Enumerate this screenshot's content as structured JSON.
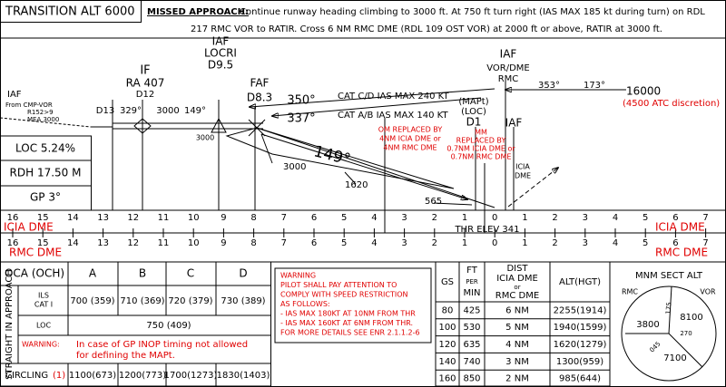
{
  "header": {
    "transition_alt": "TRANSITION ALT 6000",
    "missed_approach_label": "MISSED APPROACH:",
    "missed_approach_lines": [
      "Continue runway heading climbing to 3000 ft. At 750 ft turn right (IAS MAX 185 kt during turn) on RDL",
      "217 RMC VOR to RATIR. Cross 6 NM RMC DME (RDL 109 OST VOR) at 2000 ft or above, RATIR at 3000 ft."
    ]
  },
  "profile": {
    "left_iaf": "IAF",
    "from_cmp": "From CMP-VOR",
    "radial": "R152>9",
    "mea": "MEA 3000",
    "if": "IF",
    "if_name": "RA 407",
    "if_dist": "D12",
    "locri_iaf": "IAF",
    "locri": "LOCRI",
    "locri_dist": "D9.5",
    "faf": "FAF",
    "faf_dist": "D8.3",
    "d13": "D13",
    "track_329": "329°",
    "alt_3000_top": "3000",
    "track_149": "149°",
    "alt_3000_bottom": "3000",
    "track_350": "350°",
    "cat_cd": "CAT C/D IAS MAX 240 KT",
    "track_337": "337°",
    "cat_ab": "CAT A/B IAS MAX 140 KT",
    "mapt": "(MAPt)",
    "loc": "(LOC)",
    "d1": "D1",
    "vor_iaf": "IAF",
    "vor_dme": "VOR/DME",
    "rmc": "RMC",
    "track_353": "353°",
    "track_173": "173°",
    "alt_16000": "16000",
    "atc_discretion": "(4500 ATC discretion)",
    "om_lines": [
      "OM REPLACED BY",
      "4NM ICIA DME or",
      "4NM RMC DME"
    ],
    "mm_lines": [
      "MM",
      "REPLACED BY",
      "0.7NM ICIA DME or",
      "0.7NM RMC DME"
    ],
    "icia_iaf": "IAF",
    "icia": "ICIA",
    "icia_dme": "DME",
    "glide_track": "149°",
    "alt_3000_gp": "3000",
    "alt_1620": "1620",
    "alt_565": "565",
    "thr_elev": "THR ELEV 341",
    "loc_gradient": "LOC 5.24%",
    "rdh": "RDH 17.50 M",
    "gp": "GP 3°"
  },
  "scales": {
    "icia_label": "ICIA DME",
    "rmc_label": "RMC DME",
    "icia_ticks": [
      16,
      15,
      14,
      13,
      12,
      11,
      10,
      9,
      8,
      7,
      6,
      5,
      4,
      3,
      2,
      1,
      0,
      1,
      2,
      3,
      4,
      5,
      6,
      7
    ],
    "rmc_ticks": [
      16,
      15,
      14,
      13,
      12,
      11,
      10,
      9,
      8,
      7,
      6,
      5,
      4,
      3,
      2,
      1,
      0,
      1,
      2,
      3,
      4,
      5,
      6,
      7
    ]
  },
  "minima": {
    "header": "OCA (OCH)",
    "categories": [
      "A",
      "B",
      "C",
      "D"
    ],
    "straight_in": "STRAIGHT IN APPROACH",
    "ils_lines": [
      "ILS",
      "CAT I"
    ],
    "ils_values": [
      "700 (359)",
      "710 (369)",
      "720 (379)",
      "730 (389)"
    ],
    "loc_label": "LOC",
    "loc_value": "750 (409)",
    "warning_label": "WARNING:",
    "warning_lines": [
      "In case of GP INOP timing not allowed",
      "for defining the MAPt."
    ],
    "circling": "CIRCLING",
    "circling_note": "(1)",
    "circling_values": [
      "1100(673)",
      "1200(773)",
      "1700(1273)",
      "1830(1403)"
    ]
  },
  "speed_warning": {
    "lines": [
      "WARNING",
      "PILOT SHALL PAY ATTENTION TO",
      "COMPLY WITH SPEED RESTRICTION",
      "AS FOLLOWS:",
      "- IAS MAX 180KT AT 10NM FROM THR",
      "- IAS MAX 160KT AT 6NM FROM THR.",
      "FOR MORE DETAILS SEE ENR 2.1.1.2-6"
    ]
  },
  "descent_table": {
    "headers": {
      "gs": "GS",
      "ft": "FT",
      "per": "PER",
      "min": "MIN",
      "dist": "DIST",
      "dist_icia": "ICIA DME",
      "dist_or": "or",
      "dist_rmc": "RMC DME",
      "alt": "ALT(HGT)"
    },
    "rows": [
      [
        "80",
        "425",
        "6 NM",
        "2255(1914)"
      ],
      [
        "100",
        "530",
        "5 NM",
        "1940(1599)"
      ],
      [
        "120",
        "635",
        "4 NM",
        "1620(1279)"
      ],
      [
        "140",
        "740",
        "3 NM",
        "1300(959)"
      ],
      [
        "160",
        "850",
        "2 NM",
        "985(644)"
      ]
    ]
  },
  "msa": {
    "title": "MNM SECT ALT",
    "rmc": "RMC",
    "vor": "VOR",
    "alt_west": "3800",
    "alt_east": "8100",
    "alt_south": "7100",
    "brg_175": "175",
    "brg_270": "270",
    "brg_045": "045"
  }
}
